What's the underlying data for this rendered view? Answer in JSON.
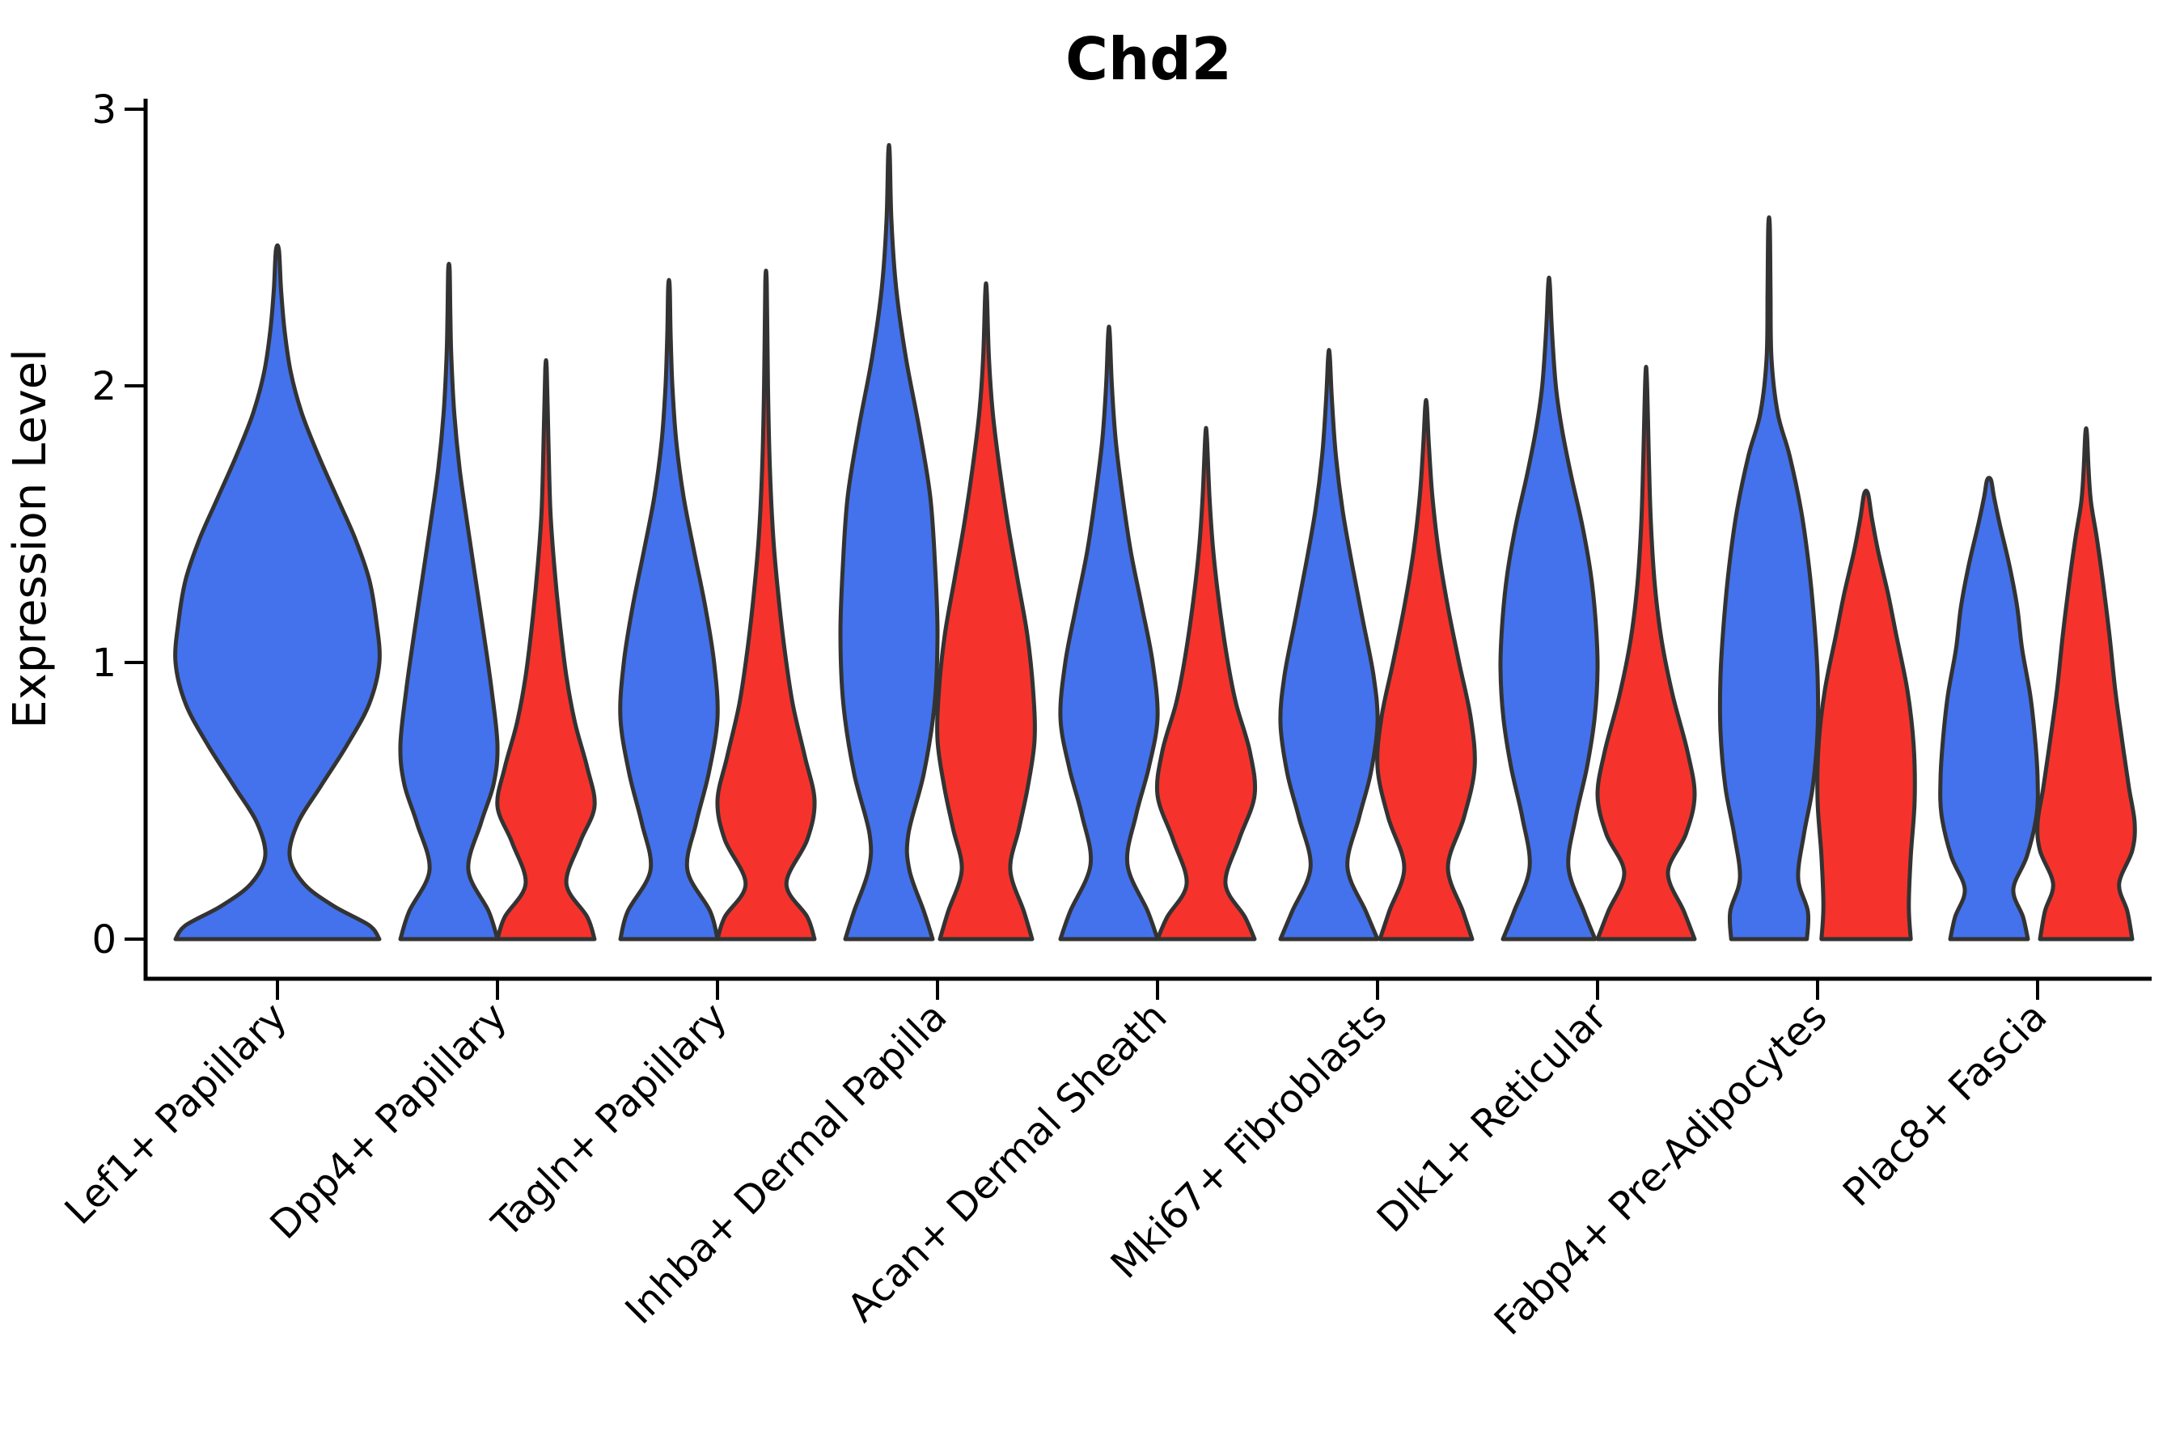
{
  "title": "Chd2",
  "ylabel": "Expression Level",
  "colors": {
    "violin_blue": "#4472EC",
    "violin_red": "#F5332C",
    "outline": "#333333",
    "axis": "#000000",
    "text": "#000000",
    "background": "#FFFFFF"
  },
  "chart_data": {
    "type": "violin",
    "title": "Chd2",
    "xlabel": "",
    "ylabel": "Expression Level",
    "ylim": [
      0,
      3
    ],
    "yticks": [
      0,
      1,
      2,
      3
    ],
    "grid": false,
    "legend": "none",
    "x_tick_rotation": 45,
    "categories": [
      "Lef1+ Papillary",
      "Dpp4+ Papillary",
      "Tagln+ Papillary",
      "Inhba+ Dermal Papilla",
      "Acan+ Dermal Sheath",
      "Mki67+ Fibroblasts",
      "Dlk1+ Reticular",
      "Fabp4+ Pre-Adipocytes",
      "Plac8+ Fascia"
    ],
    "groups": [
      "blue",
      "red"
    ],
    "violins": [
      {
        "category": "Lef1+ Papillary",
        "group": "blue",
        "max": 2.49,
        "profile": [
          [
            0,
            1.0
          ],
          [
            0.05,
            0.9
          ],
          [
            0.12,
            0.55
          ],
          [
            0.2,
            0.26
          ],
          [
            0.3,
            0.12
          ],
          [
            0.42,
            0.2
          ],
          [
            0.55,
            0.42
          ],
          [
            0.7,
            0.68
          ],
          [
            0.85,
            0.9
          ],
          [
            1.0,
            1.0
          ],
          [
            1.15,
            0.97
          ],
          [
            1.3,
            0.9
          ],
          [
            1.45,
            0.76
          ],
          [
            1.6,
            0.58
          ],
          [
            1.75,
            0.4
          ],
          [
            1.9,
            0.24
          ],
          [
            2.05,
            0.13
          ],
          [
            2.2,
            0.07
          ],
          [
            2.35,
            0.035
          ],
          [
            2.49,
            0.015
          ]
        ]
      },
      {
        "category": "Dpp4+ Papillary",
        "group": "blue",
        "max": 2.42,
        "profile": [
          [
            0,
            1.0
          ],
          [
            0.1,
            0.82
          ],
          [
            0.25,
            0.4
          ],
          [
            0.42,
            0.66
          ],
          [
            0.56,
            0.92
          ],
          [
            0.7,
            1.0
          ],
          [
            0.9,
            0.88
          ],
          [
            1.1,
            0.72
          ],
          [
            1.3,
            0.55
          ],
          [
            1.5,
            0.38
          ],
          [
            1.7,
            0.22
          ],
          [
            1.9,
            0.11
          ],
          [
            2.1,
            0.05
          ],
          [
            2.25,
            0.03
          ],
          [
            2.42,
            0.015
          ]
        ]
      },
      {
        "category": "Dpp4+ Papillary",
        "group": "red",
        "max": 2.06,
        "profile": [
          [
            0,
            1.0
          ],
          [
            0.08,
            0.85
          ],
          [
            0.2,
            0.42
          ],
          [
            0.35,
            0.7
          ],
          [
            0.48,
            1.0
          ],
          [
            0.62,
            0.85
          ],
          [
            0.78,
            0.6
          ],
          [
            0.95,
            0.42
          ],
          [
            1.15,
            0.28
          ],
          [
            1.35,
            0.17
          ],
          [
            1.55,
            0.09
          ],
          [
            1.8,
            0.05
          ],
          [
            2.06,
            0.015
          ]
        ]
      },
      {
        "category": "Tagln+ Papillary",
        "group": "blue",
        "max": 2.36,
        "profile": [
          [
            0,
            1.0
          ],
          [
            0.1,
            0.85
          ],
          [
            0.25,
            0.38
          ],
          [
            0.42,
            0.56
          ],
          [
            0.6,
            0.82
          ],
          [
            0.8,
            1.0
          ],
          [
            1.0,
            0.93
          ],
          [
            1.2,
            0.75
          ],
          [
            1.4,
            0.52
          ],
          [
            1.6,
            0.3
          ],
          [
            1.8,
            0.15
          ],
          [
            2.0,
            0.07
          ],
          [
            2.18,
            0.035
          ],
          [
            2.36,
            0.015
          ]
        ]
      },
      {
        "category": "Tagln+ Papillary",
        "group": "red",
        "max": 2.37,
        "profile": [
          [
            0,
            1.0
          ],
          [
            0.08,
            0.85
          ],
          [
            0.2,
            0.42
          ],
          [
            0.36,
            0.85
          ],
          [
            0.5,
            1.0
          ],
          [
            0.66,
            0.8
          ],
          [
            0.85,
            0.55
          ],
          [
            1.05,
            0.38
          ],
          [
            1.25,
            0.25
          ],
          [
            1.45,
            0.15
          ],
          [
            1.7,
            0.08
          ],
          [
            2.0,
            0.04
          ],
          [
            2.37,
            0.015
          ]
        ]
      },
      {
        "category": "Inhba+ Dermal Papilla",
        "group": "blue",
        "max": 2.84,
        "profile": [
          [
            0,
            0.9
          ],
          [
            0.1,
            0.72
          ],
          [
            0.25,
            0.42
          ],
          [
            0.38,
            0.4
          ],
          [
            0.6,
            0.72
          ],
          [
            0.85,
            0.94
          ],
          [
            1.1,
            1.0
          ],
          [
            1.35,
            0.95
          ],
          [
            1.6,
            0.85
          ],
          [
            1.85,
            0.62
          ],
          [
            2.1,
            0.35
          ],
          [
            2.35,
            0.15
          ],
          [
            2.6,
            0.05
          ],
          [
            2.84,
            0.015
          ]
        ]
      },
      {
        "category": "Inhba+ Dermal Papilla",
        "group": "red",
        "max": 2.34,
        "profile": [
          [
            0,
            0.95
          ],
          [
            0.1,
            0.78
          ],
          [
            0.25,
            0.5
          ],
          [
            0.4,
            0.68
          ],
          [
            0.55,
            0.86
          ],
          [
            0.72,
            1.0
          ],
          [
            0.9,
            0.97
          ],
          [
            1.1,
            0.85
          ],
          [
            1.3,
            0.65
          ],
          [
            1.5,
            0.45
          ],
          [
            1.7,
            0.28
          ],
          [
            1.9,
            0.14
          ],
          [
            2.1,
            0.06
          ],
          [
            2.34,
            0.015
          ]
        ]
      },
      {
        "category": "Acan+ Dermal Sheath",
        "group": "blue",
        "max": 2.19,
        "profile": [
          [
            0,
            1.0
          ],
          [
            0.1,
            0.8
          ],
          [
            0.27,
            0.38
          ],
          [
            0.45,
            0.56
          ],
          [
            0.62,
            0.82
          ],
          [
            0.8,
            1.0
          ],
          [
            1.0,
            0.9
          ],
          [
            1.2,
            0.68
          ],
          [
            1.4,
            0.45
          ],
          [
            1.6,
            0.28
          ],
          [
            1.8,
            0.14
          ],
          [
            2.0,
            0.06
          ],
          [
            2.19,
            0.015
          ]
        ]
      },
      {
        "category": "Acan+ Dermal Sheath",
        "group": "red",
        "max": 1.82,
        "profile": [
          [
            0,
            1.0
          ],
          [
            0.08,
            0.8
          ],
          [
            0.2,
            0.4
          ],
          [
            0.36,
            0.68
          ],
          [
            0.52,
            1.0
          ],
          [
            0.68,
            0.9
          ],
          [
            0.85,
            0.62
          ],
          [
            1.0,
            0.45
          ],
          [
            1.2,
            0.28
          ],
          [
            1.4,
            0.15
          ],
          [
            1.6,
            0.07
          ],
          [
            1.82,
            0.015
          ]
        ]
      },
      {
        "category": "Mki67+ Fibroblasts",
        "group": "blue",
        "max": 2.11,
        "profile": [
          [
            0,
            1.0
          ],
          [
            0.1,
            0.76
          ],
          [
            0.26,
            0.38
          ],
          [
            0.44,
            0.62
          ],
          [
            0.6,
            0.86
          ],
          [
            0.78,
            1.0
          ],
          [
            0.95,
            0.92
          ],
          [
            1.15,
            0.7
          ],
          [
            1.35,
            0.48
          ],
          [
            1.55,
            0.28
          ],
          [
            1.75,
            0.14
          ],
          [
            1.95,
            0.06
          ],
          [
            2.11,
            0.015
          ]
        ]
      },
      {
        "category": "Mki67+ Fibroblasts",
        "group": "red",
        "max": 1.93,
        "profile": [
          [
            0,
            0.95
          ],
          [
            0.1,
            0.76
          ],
          [
            0.26,
            0.45
          ],
          [
            0.44,
            0.78
          ],
          [
            0.62,
            1.0
          ],
          [
            0.8,
            0.92
          ],
          [
            1.0,
            0.68
          ],
          [
            1.2,
            0.45
          ],
          [
            1.4,
            0.26
          ],
          [
            1.6,
            0.13
          ],
          [
            1.78,
            0.06
          ],
          [
            1.93,
            0.015
          ]
        ]
      },
      {
        "category": "Dlk1+ Reticular",
        "group": "blue",
        "max": 2.37,
        "profile": [
          [
            0,
            0.95
          ],
          [
            0.1,
            0.72
          ],
          [
            0.26,
            0.4
          ],
          [
            0.44,
            0.55
          ],
          [
            0.62,
            0.78
          ],
          [
            0.8,
            0.94
          ],
          [
            0.98,
            1.0
          ],
          [
            1.15,
            0.96
          ],
          [
            1.32,
            0.86
          ],
          [
            1.5,
            0.68
          ],
          [
            1.68,
            0.45
          ],
          [
            1.85,
            0.26
          ],
          [
            2.0,
            0.14
          ],
          [
            2.2,
            0.06
          ],
          [
            2.37,
            0.015
          ]
        ]
      },
      {
        "category": "Dlk1+ Reticular",
        "group": "red",
        "max": 2.03,
        "profile": [
          [
            0,
            1.0
          ],
          [
            0.1,
            0.78
          ],
          [
            0.24,
            0.45
          ],
          [
            0.38,
            0.82
          ],
          [
            0.52,
            1.0
          ],
          [
            0.68,
            0.85
          ],
          [
            0.88,
            0.55
          ],
          [
            1.08,
            0.32
          ],
          [
            1.28,
            0.18
          ],
          [
            1.5,
            0.1
          ],
          [
            1.72,
            0.06
          ],
          [
            2.03,
            0.015
          ]
        ]
      },
      {
        "category": "Fabp4+ Pre-Adipocytes",
        "group": "blue",
        "max": 2.58,
        "profile": [
          [
            0,
            0.78
          ],
          [
            0.1,
            0.8
          ],
          [
            0.22,
            0.6
          ],
          [
            0.38,
            0.72
          ],
          [
            0.55,
            0.9
          ],
          [
            0.75,
            1.0
          ],
          [
            0.95,
            1.0
          ],
          [
            1.15,
            0.93
          ],
          [
            1.35,
            0.82
          ],
          [
            1.55,
            0.66
          ],
          [
            1.75,
            0.42
          ],
          [
            1.9,
            0.18
          ],
          [
            2.1,
            0.05
          ],
          [
            2.35,
            0.03
          ],
          [
            2.58,
            0.015
          ]
        ]
      },
      {
        "category": "Fabp4+ Pre-Adipocytes",
        "group": "red",
        "max": 1.61,
        "profile": [
          [
            0,
            0.92
          ],
          [
            0.12,
            0.88
          ],
          [
            0.3,
            0.92
          ],
          [
            0.5,
            1.0
          ],
          [
            0.7,
            0.98
          ],
          [
            0.9,
            0.85
          ],
          [
            1.1,
            0.62
          ],
          [
            1.25,
            0.45
          ],
          [
            1.4,
            0.25
          ],
          [
            1.52,
            0.12
          ],
          [
            1.61,
            0.04
          ]
        ]
      },
      {
        "category": "Plac8+ Fascia",
        "group": "blue",
        "max": 1.66,
        "profile": [
          [
            0,
            0.8
          ],
          [
            0.08,
            0.7
          ],
          [
            0.18,
            0.5
          ],
          [
            0.3,
            0.78
          ],
          [
            0.45,
            0.98
          ],
          [
            0.58,
            1.0
          ],
          [
            0.72,
            0.95
          ],
          [
            0.88,
            0.85
          ],
          [
            1.05,
            0.68
          ],
          [
            1.2,
            0.58
          ],
          [
            1.35,
            0.42
          ],
          [
            1.5,
            0.22
          ],
          [
            1.6,
            0.1
          ],
          [
            1.66,
            0.04
          ]
        ]
      },
      {
        "category": "Plac8+ Fascia",
        "group": "red",
        "max": 1.83,
        "profile": [
          [
            0,
            0.95
          ],
          [
            0.1,
            0.85
          ],
          [
            0.2,
            0.68
          ],
          [
            0.32,
            0.95
          ],
          [
            0.42,
            1.0
          ],
          [
            0.55,
            0.88
          ],
          [
            0.72,
            0.74
          ],
          [
            0.9,
            0.6
          ],
          [
            1.1,
            0.48
          ],
          [
            1.3,
            0.34
          ],
          [
            1.45,
            0.22
          ],
          [
            1.58,
            0.1
          ],
          [
            1.7,
            0.05
          ],
          [
            1.83,
            0.015
          ]
        ]
      }
    ]
  }
}
